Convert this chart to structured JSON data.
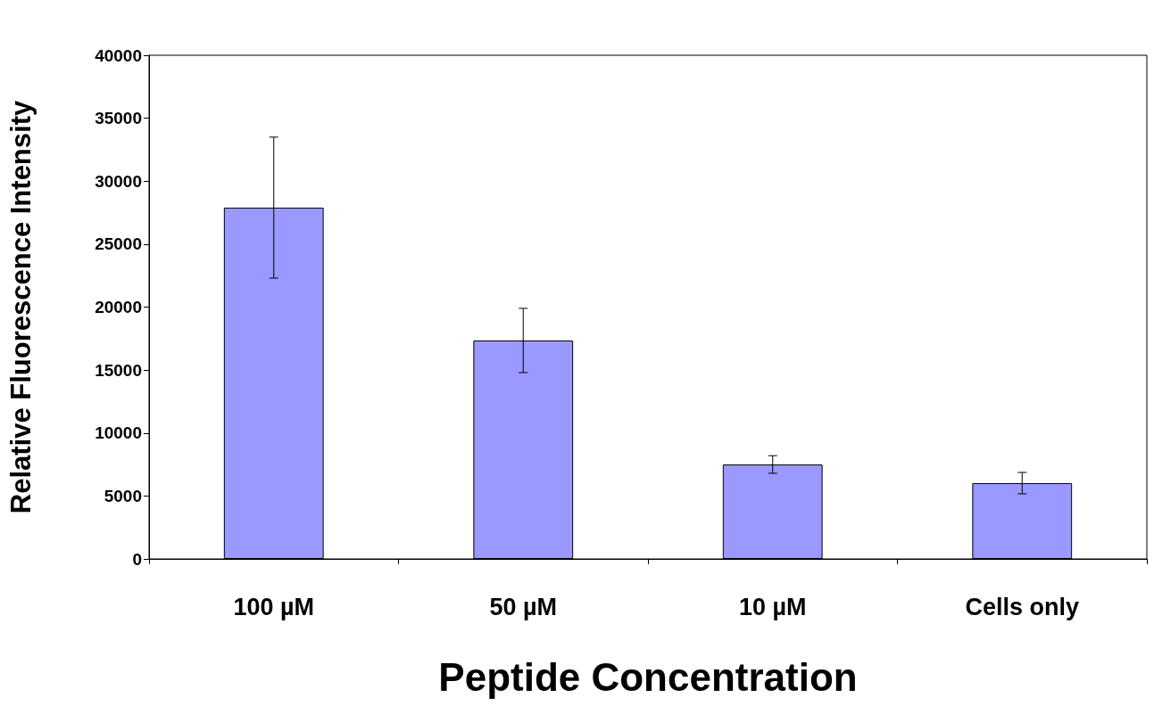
{
  "chart_data": {
    "type": "bar",
    "xlabel": "Peptide Concentration",
    "ylabel": "Relative Fluorescence Intensity",
    "categories": [
      "100 µM",
      "50 µM",
      "10 µM",
      "Cells only"
    ],
    "values": [
      27900,
      17350,
      7500,
      6020
    ],
    "errors": [
      5600,
      2550,
      700,
      850
    ],
    "color": "#9999ff",
    "ylim": [
      0,
      40000
    ],
    "yticks": [
      0,
      5000,
      10000,
      15000,
      20000,
      25000,
      30000,
      35000,
      40000
    ],
    "grid": false
  }
}
